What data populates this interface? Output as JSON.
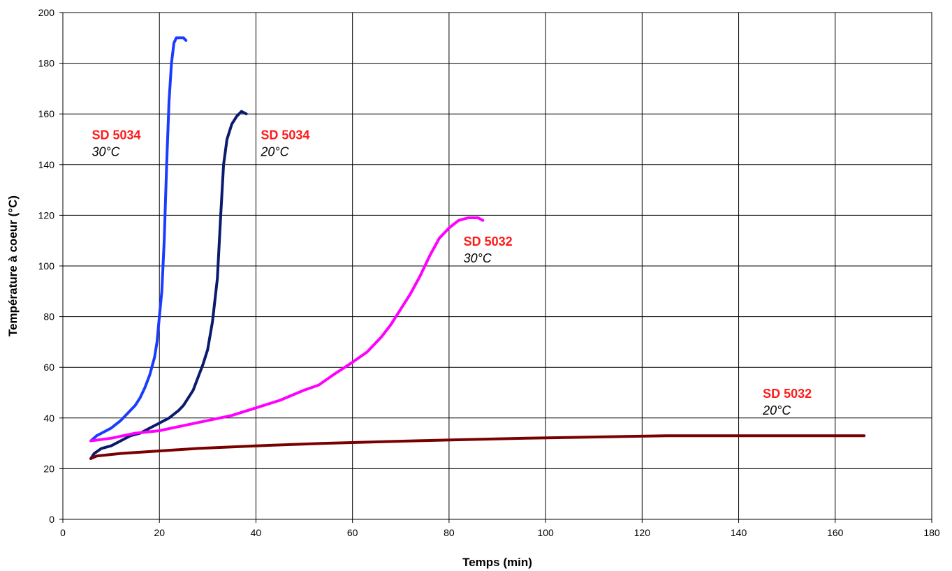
{
  "chart_data": {
    "type": "line",
    "xlabel": "Temps (min)",
    "ylabel": "Température à coeur (°C)",
    "xlim": [
      0,
      180
    ],
    "ylim": [
      0,
      200
    ],
    "x_ticks": [
      "0",
      "20",
      "40",
      "60",
      "80",
      "100",
      "120",
      "140",
      "160",
      "180"
    ],
    "y_ticks": [
      "0",
      "20",
      "40",
      "60",
      "80",
      "100",
      "120",
      "140",
      "160",
      "180",
      "200"
    ],
    "grid": true,
    "series": [
      {
        "color": "#1a3cff",
        "points": [
          [
            5.8,
            31
          ],
          [
            7,
            33
          ],
          [
            8,
            34
          ],
          [
            10,
            36
          ],
          [
            12,
            39
          ],
          [
            14,
            43
          ],
          [
            15,
            45
          ],
          [
            16,
            48
          ],
          [
            17,
            52
          ],
          [
            18,
            57
          ],
          [
            19,
            64
          ],
          [
            19.5,
            70
          ],
          [
            20,
            80
          ],
          [
            20.5,
            90
          ],
          [
            21,
            110
          ],
          [
            21.5,
            140
          ],
          [
            22,
            165
          ],
          [
            22.5,
            180
          ],
          [
            23,
            188
          ],
          [
            23.5,
            190
          ],
          [
            24,
            190
          ],
          [
            25,
            190
          ],
          [
            25.5,
            189
          ]
        ]
      },
      {
        "color": "#0a1a6e",
        "points": [
          [
            5.8,
            24
          ],
          [
            6.5,
            26
          ],
          [
            8,
            28
          ],
          [
            10,
            29
          ],
          [
            12,
            31
          ],
          [
            14,
            33
          ],
          [
            16,
            34
          ],
          [
            18,
            36
          ],
          [
            20,
            38
          ],
          [
            22,
            40
          ],
          [
            24,
            43
          ],
          [
            25,
            45
          ],
          [
            26,
            48
          ],
          [
            27,
            51
          ],
          [
            28,
            56
          ],
          [
            29,
            61
          ],
          [
            30,
            67
          ],
          [
            31,
            78
          ],
          [
            32,
            95
          ],
          [
            32.7,
            120
          ],
          [
            33.3,
            140
          ],
          [
            34,
            150
          ],
          [
            35,
            156
          ],
          [
            36,
            159
          ],
          [
            37,
            161
          ],
          [
            38,
            160
          ]
        ]
      },
      {
        "color": "#ff00ff",
        "points": [
          [
            5.8,
            31
          ],
          [
            10,
            32
          ],
          [
            15,
            34
          ],
          [
            20,
            35
          ],
          [
            25,
            37
          ],
          [
            30,
            39
          ],
          [
            35,
            41
          ],
          [
            40,
            44
          ],
          [
            45,
            47
          ],
          [
            50,
            51
          ],
          [
            53,
            53
          ],
          [
            56,
            57
          ],
          [
            60,
            62
          ],
          [
            63,
            66
          ],
          [
            66,
            72
          ],
          [
            68,
            77
          ],
          [
            70,
            83
          ],
          [
            72,
            89
          ],
          [
            74,
            96
          ],
          [
            76,
            104
          ],
          [
            78,
            111
          ],
          [
            80,
            115
          ],
          [
            82,
            118
          ],
          [
            84,
            119
          ],
          [
            86,
            119
          ],
          [
            87,
            118
          ]
        ]
      },
      {
        "color": "#7a0000",
        "points": [
          [
            5.8,
            24
          ],
          [
            7,
            25
          ],
          [
            12,
            26
          ],
          [
            20,
            27
          ],
          [
            28,
            28
          ],
          [
            40,
            29
          ],
          [
            54,
            30
          ],
          [
            73,
            31
          ],
          [
            96,
            32
          ],
          [
            125,
            33
          ],
          [
            145,
            33
          ],
          [
            166,
            33
          ]
        ]
      }
    ],
    "annotations": [
      {
        "name": "SD 5034",
        "temp": "30°C",
        "x": 6,
        "y": 150
      },
      {
        "name": "SD 5034",
        "temp": "20°C",
        "x": 41,
        "y": 150
      },
      {
        "name": "SD 5032",
        "temp": "30°C",
        "x": 83,
        "y": 108
      },
      {
        "name": "SD 5032",
        "temp": "20°C",
        "x": 145,
        "y": 48
      }
    ],
    "annotation_name_color": "#ff1a1a"
  }
}
